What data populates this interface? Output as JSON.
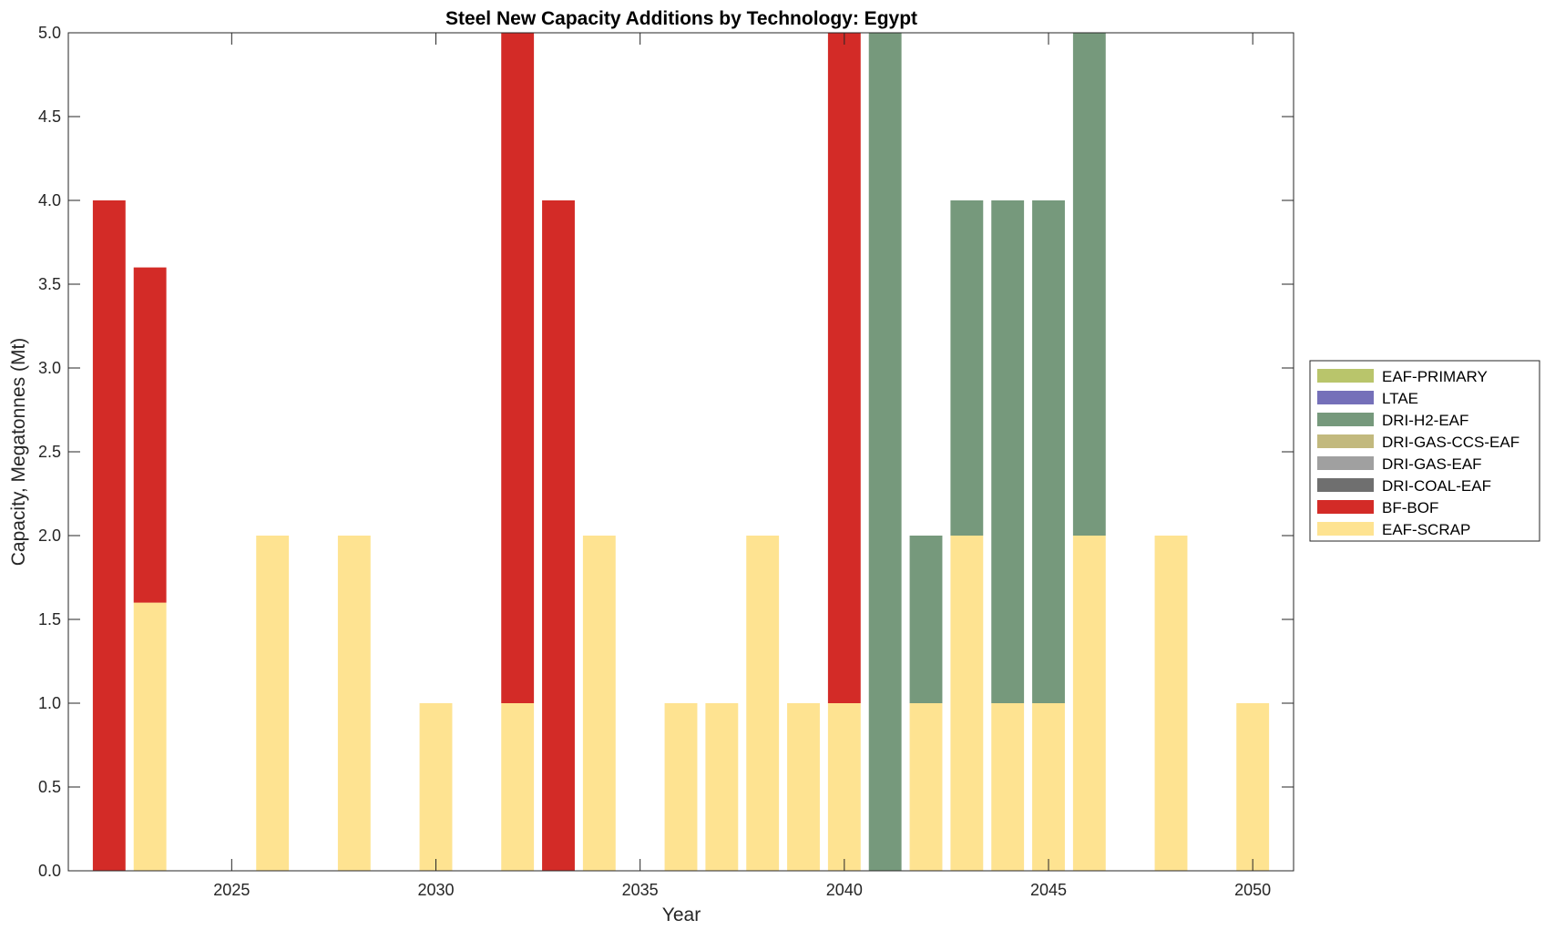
{
  "chart_data": {
    "type": "bar",
    "stacked": true,
    "title": "Steel New Capacity Additions by Technology: Egypt",
    "xlabel": "Year",
    "ylabel": "Capacity, Megatonnes (Mt)",
    "xlim": [
      2021,
      2051
    ],
    "ylim": [
      0,
      5
    ],
    "grid": false,
    "legend_position": "right",
    "x_ticks": [
      2025,
      2030,
      2035,
      2040,
      2045,
      2050
    ],
    "x_tick_labels": [
      "2025",
      "2030",
      "2035",
      "2040",
      "2045",
      "2050"
    ],
    "y_ticks": [
      0,
      0.5,
      1,
      1.5,
      2,
      2.5,
      3,
      3.5,
      4,
      4.5,
      5
    ],
    "y_tick_labels": [
      "0.0",
      "0.5",
      "1.0",
      "1.5",
      "2.0",
      "2.5",
      "3.0",
      "3.5",
      "4.0",
      "4.5",
      "5.0"
    ],
    "categories": [
      2022,
      2023,
      2024,
      2025,
      2026,
      2027,
      2028,
      2029,
      2030,
      2031,
      2032,
      2033,
      2034,
      2035,
      2036,
      2037,
      2038,
      2039,
      2040,
      2041,
      2042,
      2043,
      2044,
      2045,
      2046,
      2047,
      2048,
      2049,
      2050
    ],
    "series": [
      {
        "name": "EAF-SCRAP",
        "color": "#fee391",
        "values": [
          0,
          1.6,
          0,
          0,
          2,
          0,
          2,
          0,
          1,
          0,
          1,
          0,
          2,
          0,
          1,
          1,
          2,
          1,
          1,
          0,
          1,
          2,
          1,
          1,
          2,
          0,
          2,
          0,
          1
        ]
      },
      {
        "name": "BF-BOF",
        "color": "#d32b27",
        "values": [
          4,
          2,
          0,
          0,
          0,
          0,
          0,
          0,
          0,
          0,
          4,
          4,
          0,
          0,
          0,
          0,
          0,
          0,
          4,
          0,
          0,
          0,
          0,
          0,
          0,
          0,
          0,
          0,
          0
        ]
      },
      {
        "name": "DRI-COAL-EAF",
        "color": "#6f6f6f",
        "values": [
          0,
          0,
          0,
          0,
          0,
          0,
          0,
          0,
          0,
          0,
          0,
          0,
          0,
          0,
          0,
          0,
          0,
          0,
          0,
          0,
          0,
          0,
          0,
          0,
          0,
          0,
          0,
          0,
          0
        ]
      },
      {
        "name": "DRI-GAS-EAF",
        "color": "#a0a0a0",
        "values": [
          0,
          0,
          0,
          0,
          0,
          0,
          0,
          0,
          0,
          0,
          0,
          0,
          0,
          0,
          0,
          0,
          0,
          0,
          0,
          0,
          0,
          0,
          0,
          0,
          0,
          0,
          0,
          0,
          0
        ]
      },
      {
        "name": "DRI-GAS-CCS-EAF",
        "color": "#c2b97e",
        "values": [
          0,
          0,
          0,
          0,
          0,
          0,
          0,
          0,
          0,
          0,
          0,
          0,
          0,
          0,
          0,
          0,
          0,
          0,
          0,
          0,
          0,
          0,
          0,
          0,
          0,
          0,
          0,
          0,
          0
        ]
      },
      {
        "name": "DRI-H2-EAF",
        "color": "#76997c",
        "values": [
          0,
          0,
          0,
          0,
          0,
          0,
          0,
          0,
          0,
          0,
          0,
          0,
          0,
          0,
          0,
          0,
          0,
          0,
          0,
          5,
          1,
          2,
          3,
          3,
          3,
          0,
          0,
          0,
          0
        ]
      },
      {
        "name": "LTAE",
        "color": "#7570b9",
        "values": [
          0,
          0,
          0,
          0,
          0,
          0,
          0,
          0,
          0,
          0,
          0,
          0,
          0,
          0,
          0,
          0,
          0,
          0,
          0,
          0,
          0,
          0,
          0,
          0,
          0,
          0,
          0,
          0,
          0
        ]
      },
      {
        "name": "EAF-PRIMARY",
        "color": "#b9c56b",
        "values": [
          0,
          0,
          0,
          0,
          0,
          0,
          0,
          0,
          0,
          0,
          0,
          0,
          0,
          0,
          0,
          0,
          0,
          0,
          0,
          0,
          0,
          0,
          0,
          0,
          0,
          0,
          0,
          0,
          0
        ]
      }
    ],
    "legend_order": [
      "EAF-PRIMARY",
      "LTAE",
      "DRI-H2-EAF",
      "DRI-GAS-CCS-EAF",
      "DRI-GAS-EAF",
      "DRI-COAL-EAF",
      "BF-BOF",
      "EAF-SCRAP"
    ]
  }
}
